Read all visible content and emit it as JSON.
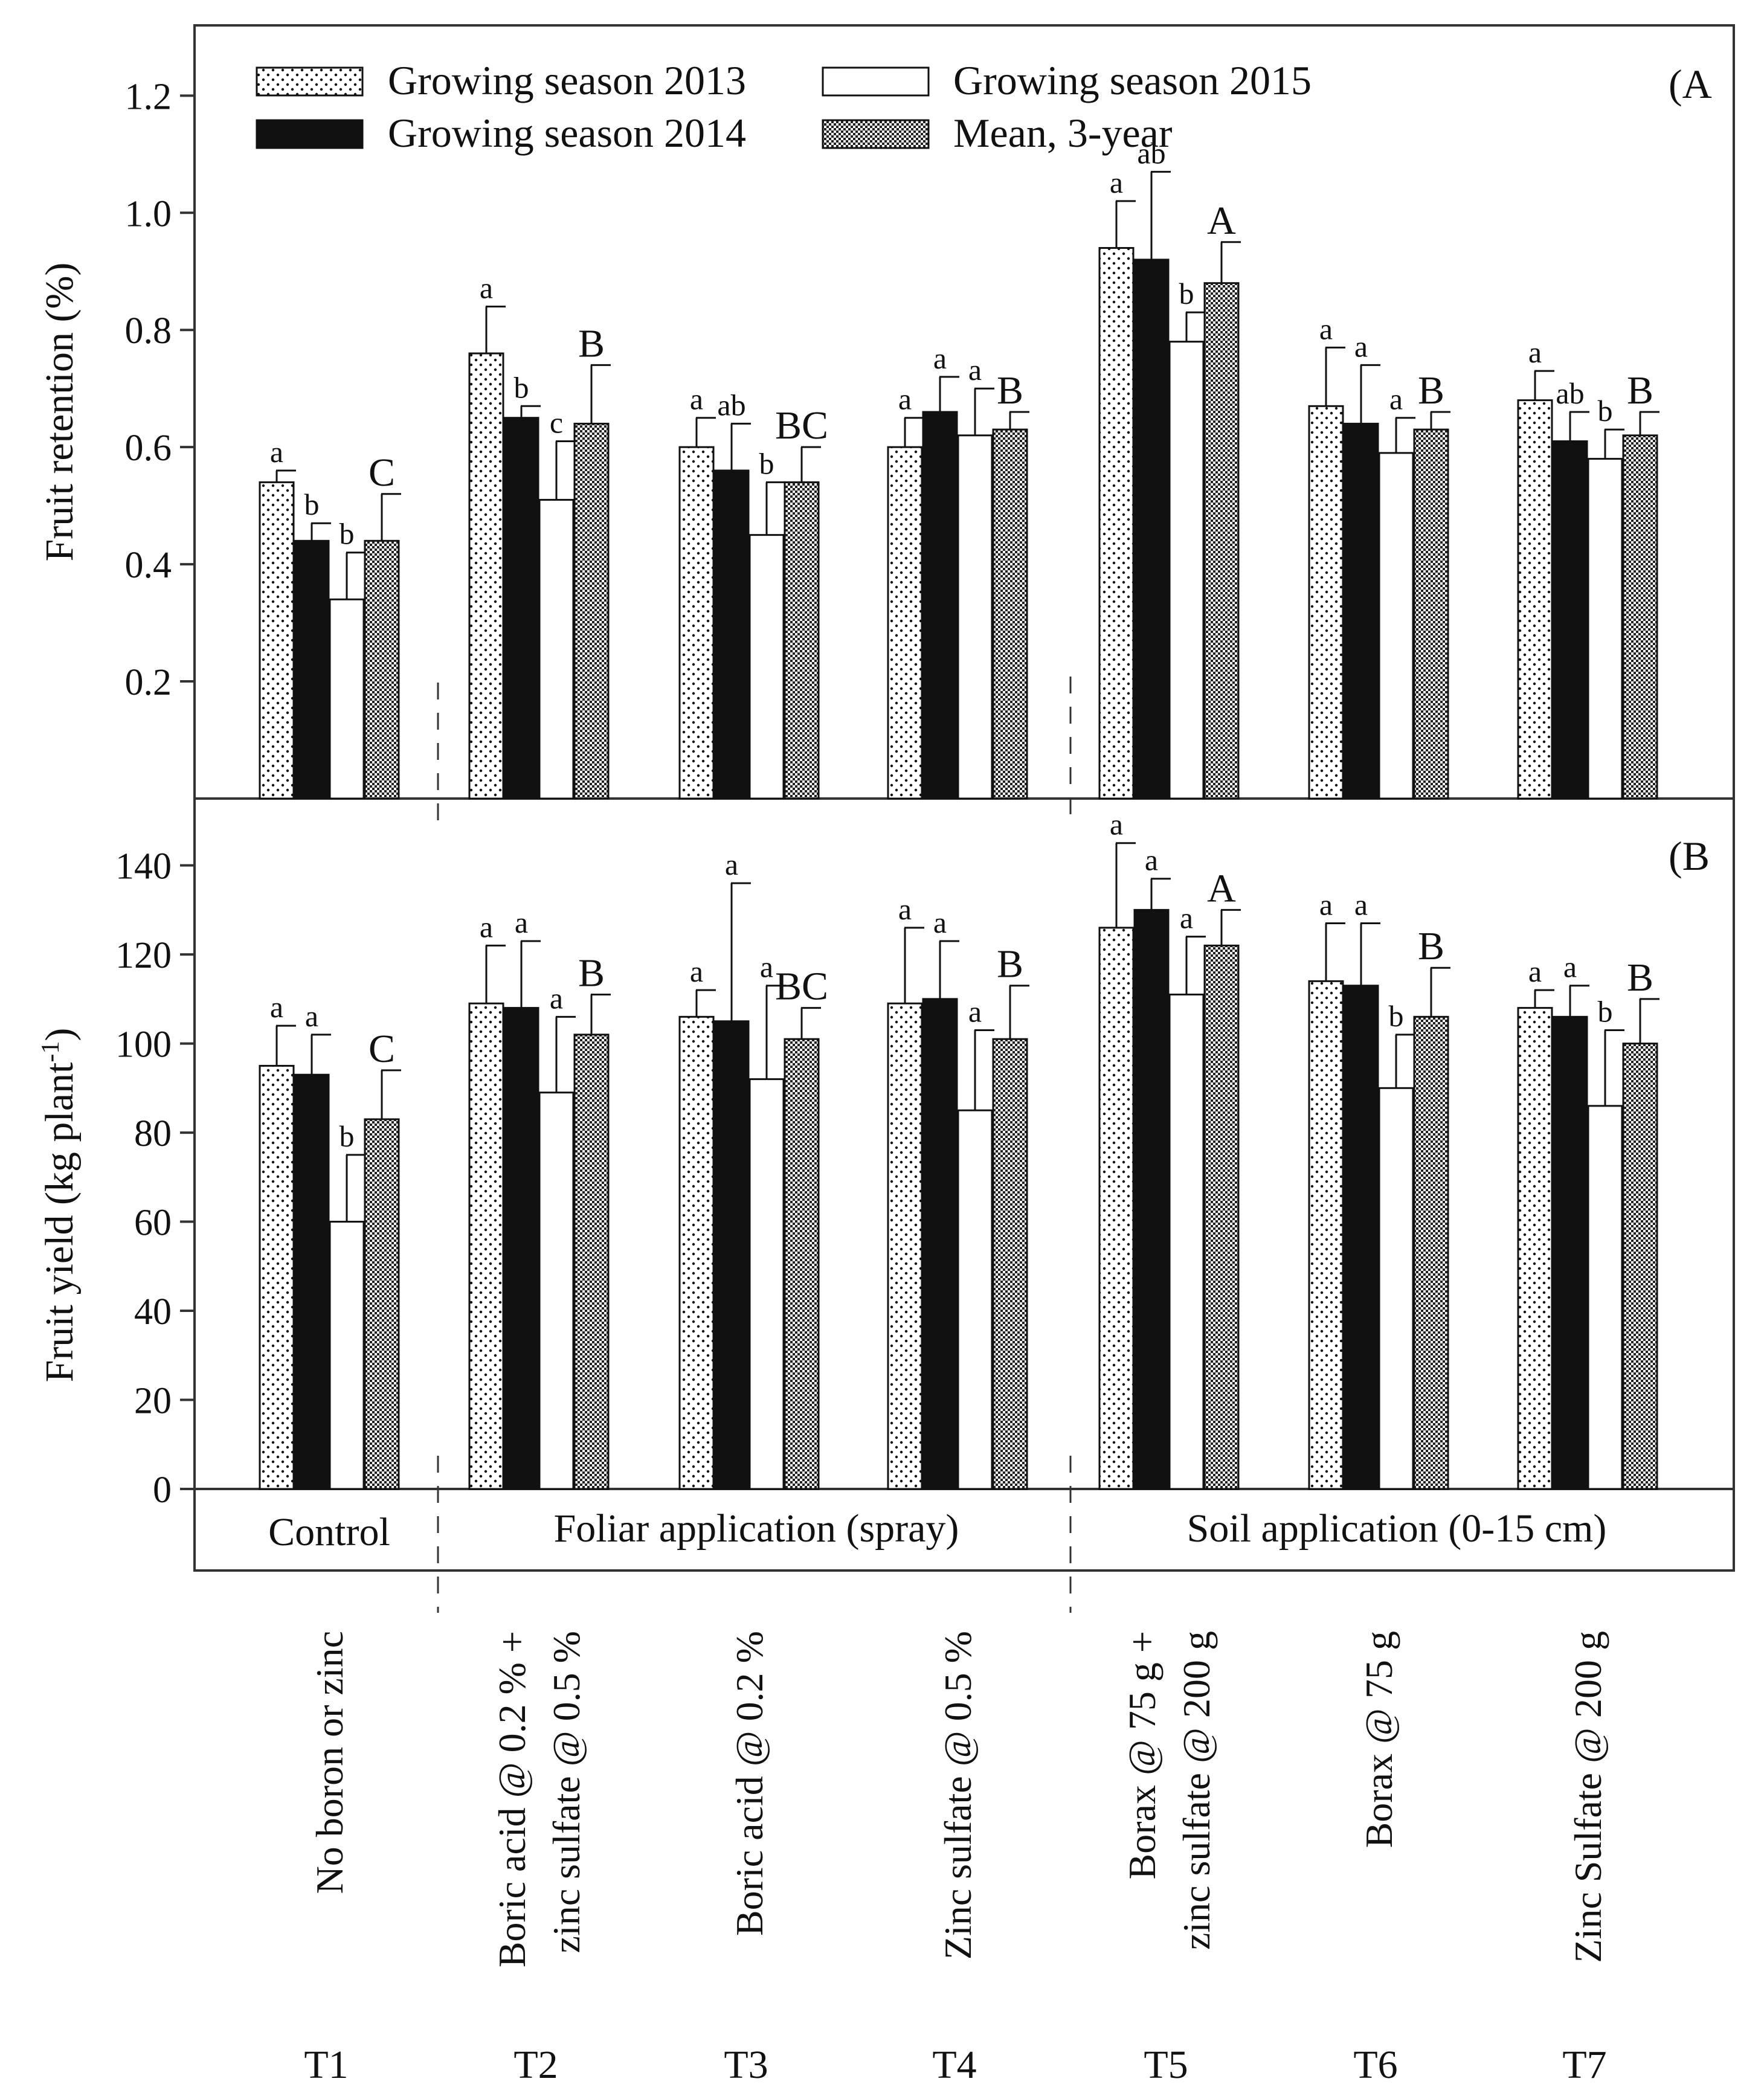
{
  "figure": {
    "legend": [
      {
        "label": "Growing season 2013",
        "pattern": "dots"
      },
      {
        "label": "Growing season 2015",
        "pattern": "open"
      },
      {
        "label": "Growing season 2014",
        "pattern": "solid"
      },
      {
        "label": "Mean, 3-year",
        "pattern": "dense"
      }
    ],
    "group_labels": [
      "Control",
      "Foliar application (spray)",
      "Soil application (0-15 cm)"
    ],
    "treatments": [
      {
        "code": "T1",
        "lines": [
          "No boron or zinc"
        ]
      },
      {
        "code": "T2",
        "lines": [
          "Boric acid @ 0.2 % +",
          "zinc sulfate @ 0.5 %"
        ]
      },
      {
        "code": "T3",
        "lines": [
          "Boric acid @ 0.2 %"
        ]
      },
      {
        "code": "T4",
        "lines": [
          "Zinc sulfate @ 0.5 %"
        ]
      },
      {
        "code": "T5",
        "lines": [
          "Borax @ 75 g +",
          "zinc sulfate @ 200 g"
        ]
      },
      {
        "code": "T6",
        "lines": [
          "Borax @ 75 g"
        ]
      },
      {
        "code": "T7",
        "lines": [
          "Zinc Sulfate @ 200 g"
        ]
      }
    ],
    "colors": {
      "ink": "#111111",
      "background": "#ffffff"
    }
  },
  "chart_data": [
    {
      "type": "bar",
      "panel_label": "(A",
      "ylabel": "Fruit retention (%)",
      "yticks": [
        0.2,
        0.4,
        0.6,
        0.8,
        1.0,
        1.2
      ],
      "ylim": [
        0,
        1.32
      ],
      "categories": [
        "T1",
        "T2",
        "T3",
        "T4",
        "T5",
        "T6",
        "T7"
      ],
      "series": [
        {
          "name": "Growing season 2013",
          "values": [
            0.54,
            0.76,
            0.6,
            0.6,
            0.94,
            0.67,
            0.68
          ],
          "errors": [
            0.02,
            0.08,
            0.05,
            0.05,
            0.08,
            0.1,
            0.05
          ],
          "letters": [
            "a",
            "a",
            "a",
            "a",
            "a",
            "a",
            "a"
          ]
        },
        {
          "name": "Growing season 2014",
          "values": [
            0.44,
            0.65,
            0.56,
            0.66,
            0.92,
            0.64,
            0.61
          ],
          "errors": [
            0.03,
            0.02,
            0.08,
            0.06,
            0.15,
            0.1,
            0.05
          ],
          "letters": [
            "b",
            "b",
            "ab",
            "a",
            "ab",
            "a",
            "ab"
          ]
        },
        {
          "name": "Growing season 2015",
          "values": [
            0.34,
            0.51,
            0.45,
            0.62,
            0.78,
            0.59,
            0.58
          ],
          "errors": [
            0.08,
            0.1,
            0.09,
            0.08,
            0.05,
            0.06,
            0.05
          ],
          "letters": [
            "b",
            "c",
            "b",
            "a",
            "b",
            "a",
            "b"
          ]
        },
        {
          "name": "Mean, 3-year",
          "values": [
            0.44,
            0.64,
            0.54,
            0.63,
            0.88,
            0.63,
            0.62
          ],
          "errors": [
            0.08,
            0.1,
            0.06,
            0.03,
            0.07,
            0.03,
            0.04
          ],
          "letters": [
            "C",
            "B",
            "BC",
            "B",
            "A",
            "B",
            "B"
          ]
        }
      ]
    },
    {
      "type": "bar",
      "panel_label": "(B",
      "ylabel": "Fruit yield (kg plant-1)",
      "ylabel_main": "Fruit yield (kg plant",
      "ylabel_sup": "-1",
      "ylabel_close": ")",
      "yticks": [
        0,
        20,
        40,
        60,
        80,
        100,
        120,
        140
      ],
      "ylim": [
        0,
        155
      ],
      "categories": [
        "T1",
        "T2",
        "T3",
        "T4",
        "T5",
        "T6",
        "T7"
      ],
      "series": [
        {
          "name": "Growing season 2013",
          "values": [
            95,
            109,
            106,
            109,
            126,
            114,
            108
          ],
          "errors": [
            9,
            13,
            6,
            17,
            19,
            13,
            4
          ],
          "letters": [
            "a",
            "a",
            "a",
            "a",
            "a",
            "a",
            "a"
          ]
        },
        {
          "name": "Growing season 2014",
          "values": [
            93,
            108,
            105,
            110,
            130,
            113,
            106
          ],
          "errors": [
            9,
            15,
            31,
            13,
            7,
            14,
            7
          ],
          "letters": [
            "a",
            "a",
            "a",
            "a",
            "a",
            "a",
            "a"
          ]
        },
        {
          "name": "Growing season 2015",
          "values": [
            60,
            89,
            92,
            85,
            111,
            90,
            86
          ],
          "errors": [
            15,
            17,
            21,
            18,
            13,
            12,
            17
          ],
          "letters": [
            "b",
            "a",
            "a",
            "a",
            "a",
            "b",
            "b"
          ]
        },
        {
          "name": "Mean, 3-year",
          "values": [
            83,
            102,
            101,
            101,
            122,
            106,
            100
          ],
          "errors": [
            11,
            9,
            7,
            12,
            8,
            11,
            10
          ],
          "letters": [
            "C",
            "B",
            "BC",
            "B",
            "A",
            "B",
            "B"
          ]
        }
      ]
    }
  ]
}
